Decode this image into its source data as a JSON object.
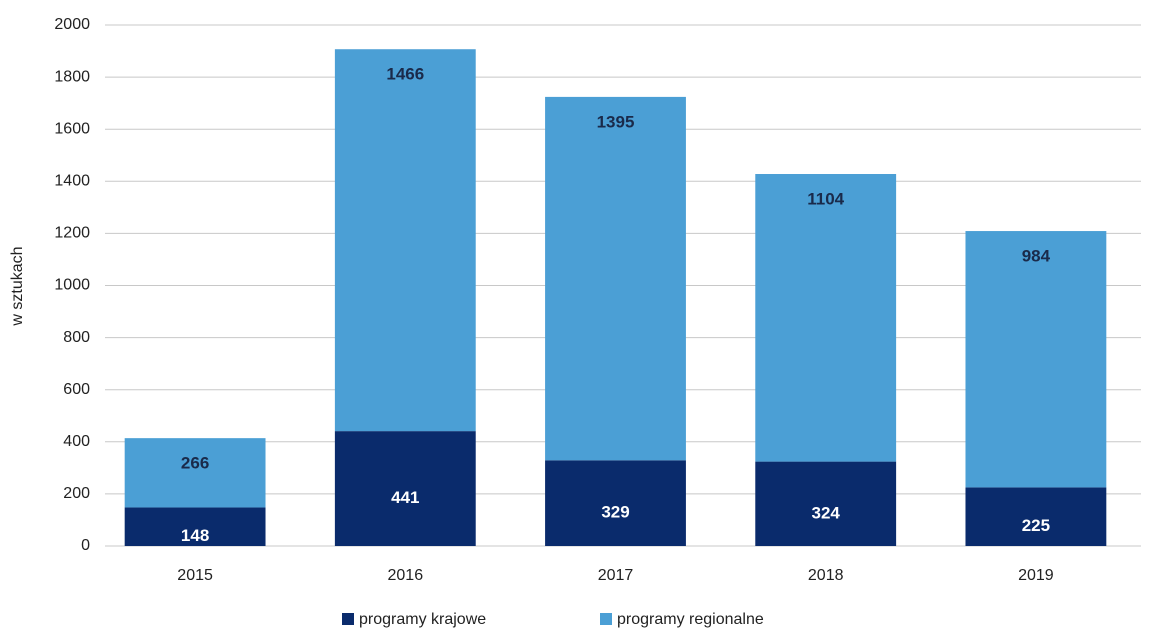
{
  "chart_data": {
    "type": "stacked_bar",
    "y_label": "w sztukach",
    "categories": [
      "2015",
      "2016",
      "2017",
      "2018",
      "2019"
    ],
    "series": [
      {
        "name": "programy krajowe",
        "color": "#0a2b6c",
        "values": [
          148,
          441,
          329,
          324,
          225
        ]
      },
      {
        "name": "programy regionalne",
        "color": "#4b9fd5",
        "values": [
          266,
          1466,
          1395,
          1104,
          984
        ]
      }
    ],
    "ylim": [
      0,
      2000
    ],
    "yticks": [
      0,
      200,
      400,
      600,
      800,
      1000,
      1200,
      1400,
      1600,
      1800,
      2000
    ],
    "grid": true,
    "legend": "bottom"
  }
}
